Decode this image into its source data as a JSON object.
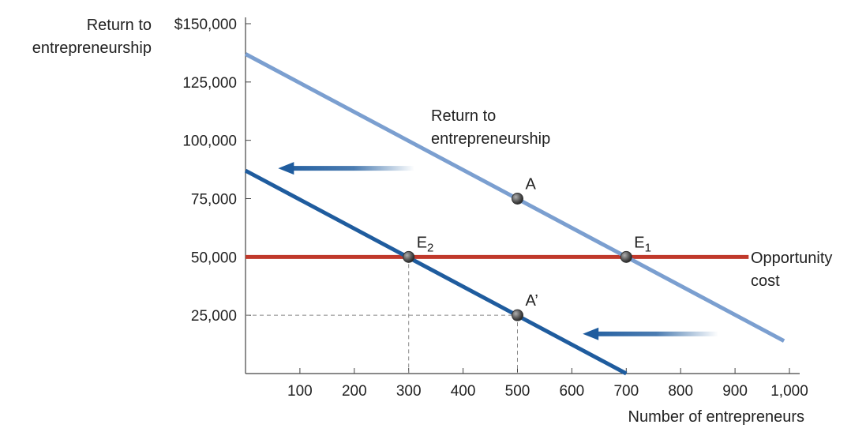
{
  "chart_data": {
    "type": "line",
    "ylabel": [
      "Return to",
      "entrepreneurship"
    ],
    "xlabel": "Number of entrepreneurs",
    "xlim": [
      0,
      1000
    ],
    "ylim": [
      0,
      150000
    ],
    "x_ticks": [
      100,
      200,
      300,
      400,
      500,
      600,
      700,
      800,
      900,
      1000
    ],
    "x_tick_labels": [
      "100",
      "200",
      "300",
      "400",
      "500",
      "600",
      "700",
      "800",
      "900",
      "1,000"
    ],
    "y_ticks": [
      25000,
      50000,
      75000,
      100000,
      125000,
      150000
    ],
    "y_tick_labels": [
      "25,000",
      "50,000",
      "75,000",
      "100,000",
      "125,000",
      "$150,000"
    ],
    "series": [
      {
        "key": "original",
        "color": "#7b9fd0",
        "points": [
          [
            0,
            137000
          ],
          [
            990,
            14000
          ]
        ],
        "annotation": [
          "Return to",
          "entrepreneurship"
        ]
      },
      {
        "key": "shifted",
        "color": "#1f5c9e",
        "points": [
          [
            0,
            87000
          ],
          [
            700,
            0
          ]
        ]
      },
      {
        "key": "opportunity",
        "color": "#c0392b",
        "points": [
          [
            0,
            50000
          ],
          [
            925,
            50000
          ]
        ],
        "annotation": [
          "Opportunity",
          "cost"
        ]
      }
    ],
    "points": [
      {
        "label": "A",
        "sub": "",
        "x": 500,
        "y": 75000
      },
      {
        "label": "E",
        "sub": "1",
        "x": 700,
        "y": 50000
      },
      {
        "label": "E",
        "sub": "2",
        "x": 300,
        "y": 50000
      },
      {
        "label": "A’",
        "sub": "",
        "x": 500,
        "y": 25000
      }
    ],
    "guides": [
      {
        "from": [
          300,
          50000
        ],
        "to": [
          300,
          0
        ]
      },
      {
        "from": [
          500,
          25000
        ],
        "to": [
          500,
          0
        ]
      },
      {
        "from": [
          0,
          25000
        ],
        "to": [
          500,
          25000
        ]
      }
    ],
    "arrows": [
      {
        "from": [
          315,
          88000
        ],
        "to": [
          60,
          88000
        ]
      },
      {
        "from": [
          870,
          17000
        ],
        "to": [
          620,
          17000
        ]
      }
    ],
    "grid": false
  }
}
